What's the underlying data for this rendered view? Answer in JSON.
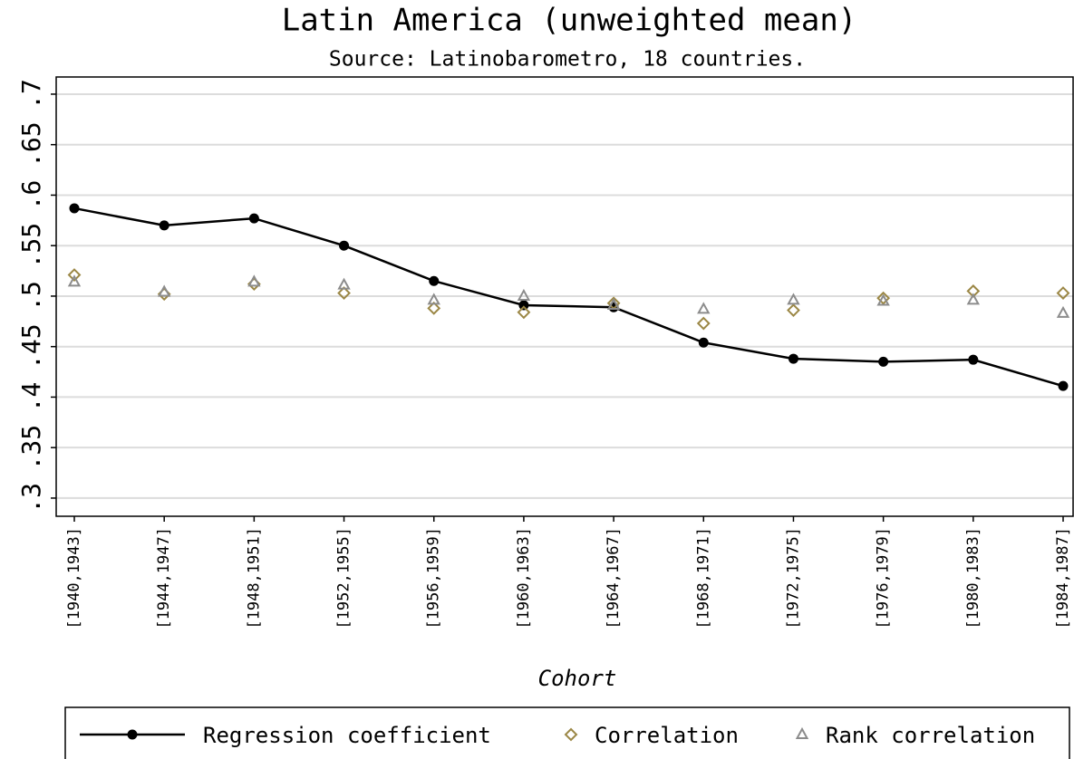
{
  "chart_data": {
    "type": "line",
    "title": "Latin America (unweighted mean)",
    "subtitle": "Source: Latinobarometro, 18 countries.",
    "x_label": "Cohort",
    "categories": [
      "[1940,1943]",
      "[1944,1947]",
      "[1948,1951]",
      "[1952,1955]",
      "[1956,1959]",
      "[1960,1963]",
      "[1964,1967]",
      "[1968,1971]",
      "[1972,1975]",
      "[1976,1979]",
      "[1980,1983]",
      "[1984,1987]"
    ],
    "series": [
      {
        "name": "Regression coefficient",
        "color": "#000000",
        "marker": "circle",
        "line": true,
        "values": [
          0.587,
          0.57,
          0.577,
          0.55,
          0.515,
          0.491,
          0.489,
          0.454,
          0.438,
          0.435,
          0.437,
          0.411
        ]
      },
      {
        "name": "Correlation",
        "color": "#9b8745",
        "marker": "diamond",
        "line": false,
        "values": [
          0.521,
          0.502,
          0.512,
          0.503,
          0.488,
          0.484,
          0.493,
          0.473,
          0.486,
          0.498,
          0.505,
          0.503
        ]
      },
      {
        "name": "Rank correlation",
        "color": "#8c8c8c",
        "marker": "triangle",
        "line": false,
        "values": [
          0.514,
          0.504,
          0.514,
          0.511,
          0.496,
          0.5,
          0.491,
          0.487,
          0.496,
          0.495,
          0.496,
          0.483
        ]
      }
    ],
    "ylim": [
      0.282,
      0.717
    ],
    "yticks": [
      {
        "value": 0.3,
        "label": ".3"
      },
      {
        "value": 0.35,
        "label": ".35"
      },
      {
        "value": 0.4,
        "label": ".4"
      },
      {
        "value": 0.45,
        "label": ".45"
      },
      {
        "value": 0.5,
        "label": ".5"
      },
      {
        "value": 0.55,
        "label": ".55"
      },
      {
        "value": 0.6,
        "label": ".6"
      },
      {
        "value": 0.65,
        "label": ".65"
      },
      {
        "value": 0.7,
        "label": ".7"
      }
    ],
    "grid": true
  }
}
